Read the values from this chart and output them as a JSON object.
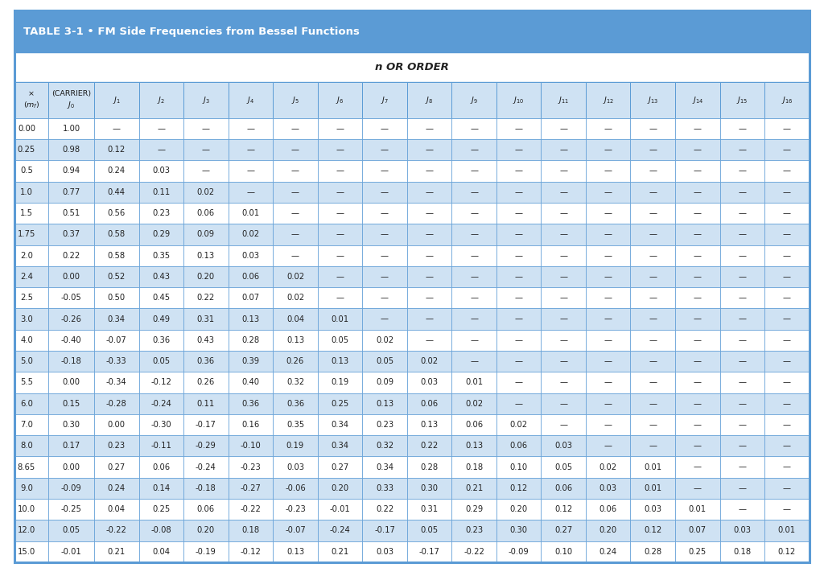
{
  "title": "TABLE 3-1 • FM Side Frequencies from Bessel Functions",
  "subtitle": "n OR ORDER",
  "header_bg": "#5b9bd5",
  "header_text_color": "#ffffff",
  "border_color": "#5b9bd5",
  "row_odd_bg": "#ffffff",
  "row_even_bg": "#cfe2f3",
  "col_header_bg": "#deeaf1",
  "rows": [
    [
      "0.00",
      "1.00",
      "—",
      "—",
      "—",
      "—",
      "—",
      "—",
      "—",
      "—",
      "—",
      "—",
      "—",
      "—",
      "—",
      "—",
      "—",
      "—"
    ],
    [
      "0.25",
      "0.98",
      "0.12",
      "—",
      "—",
      "—",
      "—",
      "—",
      "—",
      "—",
      "—",
      "—",
      "—",
      "—",
      "—",
      "—",
      "—",
      "—"
    ],
    [
      "0.5",
      "0.94",
      "0.24",
      "0.03",
      "—",
      "—",
      "—",
      "—",
      "—",
      "—",
      "—",
      "—",
      "—",
      "—",
      "—",
      "—",
      "—",
      "—"
    ],
    [
      "1.0",
      "0.77",
      "0.44",
      "0.11",
      "0.02",
      "—",
      "—",
      "—",
      "—",
      "—",
      "—",
      "—",
      "—",
      "—",
      "—",
      "—",
      "—",
      "—"
    ],
    [
      "1.5",
      "0.51",
      "0.56",
      "0.23",
      "0.06",
      "0.01",
      "—",
      "—",
      "—",
      "—",
      "—",
      "—",
      "—",
      "—",
      "—",
      "—",
      "—",
      "—"
    ],
    [
      "1.75",
      "0.37",
      "0.58",
      "0.29",
      "0.09",
      "0.02",
      "—",
      "—",
      "—",
      "—",
      "—",
      "—",
      "—",
      "—",
      "—",
      "—",
      "—",
      "—"
    ],
    [
      "2.0",
      "0.22",
      "0.58",
      "0.35",
      "0.13",
      "0.03",
      "—",
      "—",
      "—",
      "—",
      "—",
      "—",
      "—",
      "—",
      "—",
      "—",
      "—",
      "—"
    ],
    [
      "2.4",
      "0.00",
      "0.52",
      "0.43",
      "0.20",
      "0.06",
      "0.02",
      "—",
      "—",
      "—",
      "—",
      "—",
      "—",
      "—",
      "—",
      "—",
      "—",
      "—"
    ],
    [
      "2.5",
      "-0.05",
      "0.50",
      "0.45",
      "0.22",
      "0.07",
      "0.02",
      "—",
      "—",
      "—",
      "—",
      "—",
      "—",
      "—",
      "—",
      "—",
      "—",
      "—"
    ],
    [
      "3.0",
      "-0.26",
      "0.34",
      "0.49",
      "0.31",
      "0.13",
      "0.04",
      "0.01",
      "—",
      "—",
      "—",
      "—",
      "—",
      "—",
      "—",
      "—",
      "—",
      "—"
    ],
    [
      "4.0",
      "-0.40",
      "-0.07",
      "0.36",
      "0.43",
      "0.28",
      "0.13",
      "0.05",
      "0.02",
      "—",
      "—",
      "—",
      "—",
      "—",
      "—",
      "—",
      "—",
      "—"
    ],
    [
      "5.0",
      "-0.18",
      "-0.33",
      "0.05",
      "0.36",
      "0.39",
      "0.26",
      "0.13",
      "0.05",
      "0.02",
      "—",
      "—",
      "—",
      "—",
      "—",
      "—",
      "—",
      "—"
    ],
    [
      "5.5",
      "0.00",
      "-0.34",
      "-0.12",
      "0.26",
      "0.40",
      "0.32",
      "0.19",
      "0.09",
      "0.03",
      "0.01",
      "—",
      "—",
      "—",
      "—",
      "—",
      "—",
      "—"
    ],
    [
      "6.0",
      "0.15",
      "-0.28",
      "-0.24",
      "0.11",
      "0.36",
      "0.36",
      "0.25",
      "0.13",
      "0.06",
      "0.02",
      "—",
      "—",
      "—",
      "—",
      "—",
      "—",
      "—"
    ],
    [
      "7.0",
      "0.30",
      "0.00",
      "-0.30",
      "-0.17",
      "0.16",
      "0.35",
      "0.34",
      "0.23",
      "0.13",
      "0.06",
      "0.02",
      "—",
      "—",
      "—",
      "—",
      "—",
      "—"
    ],
    [
      "8.0",
      "0.17",
      "0.23",
      "-0.11",
      "-0.29",
      "-0.10",
      "0.19",
      "0.34",
      "0.32",
      "0.22",
      "0.13",
      "0.06",
      "0.03",
      "—",
      "—",
      "—",
      "—",
      "—"
    ],
    [
      "8.65",
      "0.00",
      "0.27",
      "0.06",
      "-0.24",
      "-0.23",
      "0.03",
      "0.27",
      "0.34",
      "0.28",
      "0.18",
      "0.10",
      "0.05",
      "0.02",
      "0.01",
      "—",
      "—",
      "—"
    ],
    [
      "9.0",
      "-0.09",
      "0.24",
      "0.14",
      "-0.18",
      "-0.27",
      "-0.06",
      "0.20",
      "0.33",
      "0.30",
      "0.21",
      "0.12",
      "0.06",
      "0.03",
      "0.01",
      "—",
      "—",
      "—"
    ],
    [
      "10.0",
      "-0.25",
      "0.04",
      "0.25",
      "0.06",
      "-0.22",
      "-0.23",
      "-0.01",
      "0.22",
      "0.31",
      "0.29",
      "0.20",
      "0.12",
      "0.06",
      "0.03",
      "0.01",
      "—",
      "—"
    ],
    [
      "12.0",
      "0.05",
      "-0.22",
      "-0.08",
      "0.20",
      "0.18",
      "-0.07",
      "-0.24",
      "-0.17",
      "0.05",
      "0.23",
      "0.30",
      "0.27",
      "0.20",
      "0.12",
      "0.07",
      "0.03",
      "0.01"
    ],
    [
      "15.0",
      "-0.01",
      "0.21",
      "0.04",
      "-0.19",
      "-0.12",
      "0.13",
      "0.21",
      "0.03",
      "-0.17",
      "-0.22",
      "-0.09",
      "0.10",
      "0.24",
      "0.28",
      "0.25",
      "0.18",
      "0.12"
    ]
  ]
}
